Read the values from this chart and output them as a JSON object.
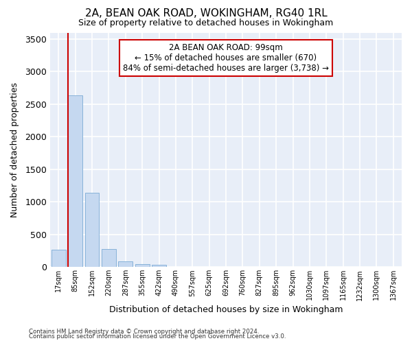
{
  "title": "2A, BEAN OAK ROAD, WOKINGHAM, RG40 1RL",
  "subtitle": "Size of property relative to detached houses in Wokingham",
  "xlabel": "Distribution of detached houses by size in Wokingham",
  "ylabel": "Number of detached properties",
  "bar_color": "#c5d8f0",
  "bar_edge_color": "#7aaad4",
  "background_color": "#e8eef8",
  "grid_color": "#ffffff",
  "categories": [
    "17sqm",
    "85sqm",
    "152sqm",
    "220sqm",
    "287sqm",
    "355sqm",
    "422sqm",
    "490sqm",
    "557sqm",
    "625sqm",
    "692sqm",
    "760sqm",
    "827sqm",
    "895sqm",
    "962sqm",
    "1030sqm",
    "1097sqm",
    "1165sqm",
    "1232sqm",
    "1300sqm",
    "1367sqm"
  ],
  "values": [
    270,
    2640,
    1140,
    280,
    90,
    45,
    30,
    0,
    0,
    0,
    0,
    0,
    0,
    0,
    0,
    0,
    0,
    0,
    0,
    0,
    0
  ],
  "ylim": [
    0,
    3600
  ],
  "yticks": [
    0,
    500,
    1000,
    1500,
    2000,
    2500,
    3000,
    3500
  ],
  "annotation_line1": "2A BEAN OAK ROAD: 99sqm",
  "annotation_line2": "← 15% of detached houses are smaller (670)",
  "annotation_line3": "84% of semi-detached houses are larger (3,738) →",
  "annotation_box_color": "#cc0000",
  "red_line_x": 1,
  "footnote1": "Contains HM Land Registry data © Crown copyright and database right 2024.",
  "footnote2": "Contains public sector information licensed under the Open Government Licence v3.0."
}
